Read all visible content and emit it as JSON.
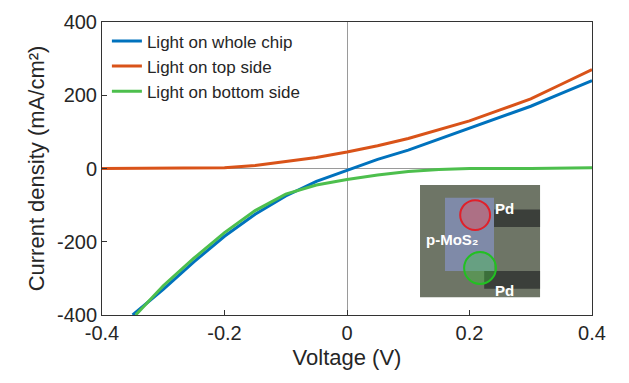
{
  "chart_data": {
    "type": "line",
    "x_label": "Voltage (V)",
    "y_label": "Current density (mA/cm²)",
    "xlim": [
      -0.4,
      0.4
    ],
    "xticks": [
      -0.4,
      -0.2,
      0,
      0.2,
      0.4
    ],
    "ylim": [
      -400,
      400
    ],
    "yticks": [
      -400,
      -200,
      0,
      200,
      400
    ],
    "grid": false,
    "legend": "upper left",
    "series": [
      {
        "name": "Light on whole chip",
        "color": "#0072bd",
        "x": [
          -0.35,
          -0.3,
          -0.25,
          -0.2,
          -0.15,
          -0.1,
          -0.05,
          0,
          0.05,
          0.1,
          0.15,
          0.2,
          0.25,
          0.3,
          0.35,
          0.4
        ],
        "values": [
          -400,
          -330,
          -255,
          -185,
          -125,
          -75,
          -35,
          -5,
          25,
          50,
          80,
          110,
          140,
          170,
          205,
          240
        ]
      },
      {
        "name": "Light on top side",
        "color": "#d95319",
        "x": [
          -0.4,
          -0.3,
          -0.2,
          -0.15,
          -0.1,
          -0.05,
          0,
          0.05,
          0.1,
          0.15,
          0.2,
          0.25,
          0.3,
          0.35,
          0.4
        ],
        "values": [
          0,
          0,
          2,
          8,
          18,
          30,
          45,
          62,
          82,
          105,
          130,
          160,
          190,
          230,
          270
        ]
      },
      {
        "name": "Light on bottom side",
        "color": "#4dbf4d",
        "x": [
          -0.345,
          -0.3,
          -0.25,
          -0.2,
          -0.15,
          -0.1,
          -0.05,
          0,
          0.05,
          0.1,
          0.15,
          0.2,
          0.3,
          0.4
        ],
        "values": [
          -400,
          -320,
          -245,
          -175,
          -115,
          -70,
          -45,
          -30,
          -18,
          -8,
          -3,
          0,
          0,
          2
        ]
      }
    ],
    "annotations": [
      "Pd",
      "p-MoS₂",
      "Pd"
    ]
  }
}
